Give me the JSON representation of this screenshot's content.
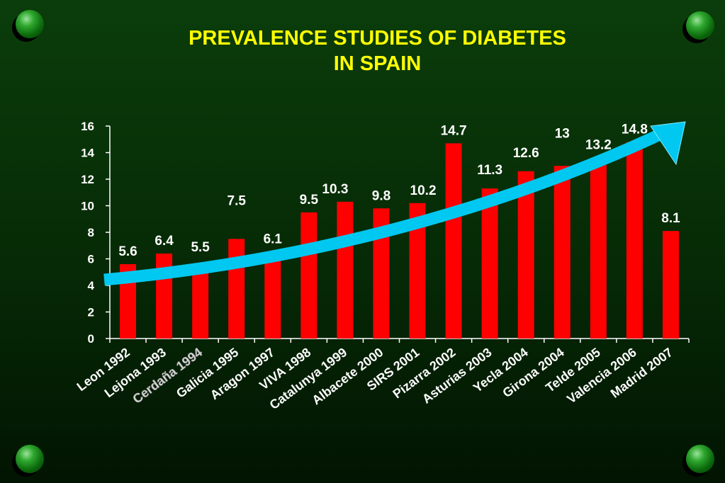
{
  "title": {
    "line1": "PREVALENCE STUDIES OF DIABETES",
    "line2": "IN SPAIN"
  },
  "colors": {
    "bar": "#ff0000",
    "title": "#ffff00",
    "arrow": "#00c8f0",
    "text": "#ffffff"
  },
  "chart_data": {
    "type": "bar",
    "categories": [
      "Leon 1992",
      "Lejona 1993",
      "Cerdaña 1994",
      "Galicia 1995",
      "Aragon 1997",
      "VIVA 1998",
      "Catalunya 1999",
      "Albacete 2000",
      "SIRS 2001",
      "Pizarra 2002",
      "Asturias 2003",
      "Yecla 2004",
      "Girona 2004",
      "Telde 2005",
      "Valencia 2006",
      "Madrid 2007"
    ],
    "values": [
      5.6,
      6.4,
      5.5,
      7.5,
      6.1,
      9.5,
      10.3,
      9.8,
      10.2,
      14.7,
      11.3,
      12.6,
      13,
      13.2,
      14.8,
      8.1
    ],
    "value_labels": [
      "5.6",
      "6.4",
      "5.5",
      "7.5",
      "6.1",
      "9.5",
      "10.3",
      "9.8",
      "10.2",
      "14.7",
      "11.3",
      "12.6",
      "13",
      "13.2",
      "14.8",
      "8.1"
    ],
    "yticks": [
      "0",
      "2",
      "4",
      "6",
      "8",
      "10",
      "12",
      "14",
      "16"
    ],
    "ylim": [
      0,
      16
    ],
    "grid": false,
    "legend": "none",
    "annotations": [
      "upward trend arrow"
    ]
  }
}
